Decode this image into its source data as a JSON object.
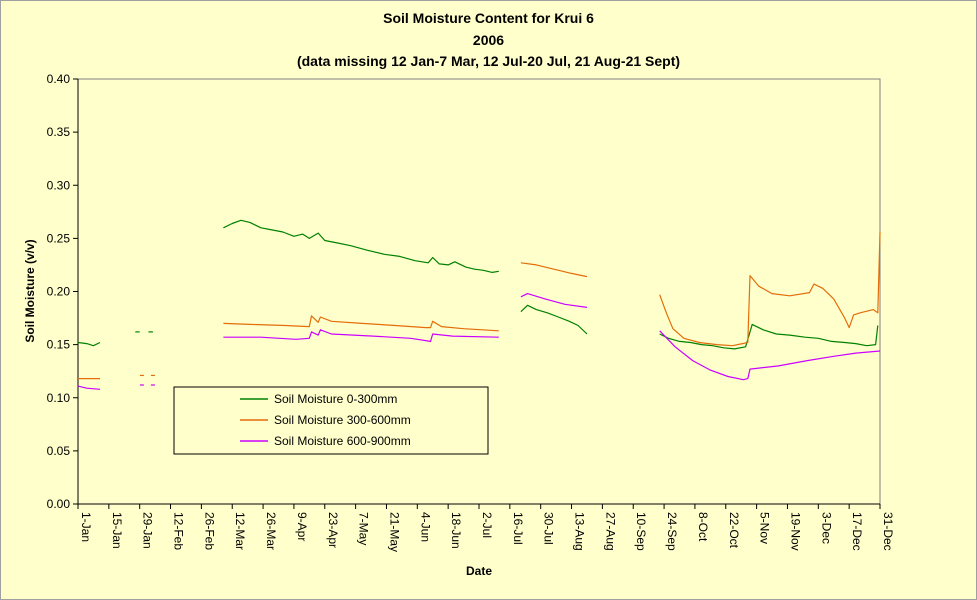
{
  "chart_data": {
    "type": "line",
    "title": "Soil Moisture Content for Krui 6",
    "subtitle": "2006",
    "note": "(data missing 12 Jan-7 Mar, 12 Jul-20 Jul, 21 Aug-21 Sept)",
    "xlabel": "Date",
    "ylabel": "Soil Moisture (v/v)",
    "ylim": [
      0,
      0.4
    ],
    "y_ticks": [
      "0.00",
      "0.05",
      "0.10",
      "0.15",
      "0.20",
      "0.25",
      "0.30",
      "0.35",
      "0.40"
    ],
    "x_ticks": [
      "1-Jan",
      "15-Jan",
      "29-Jan",
      "12-Feb",
      "26-Feb",
      "12-Mar",
      "26-Mar",
      "9-Apr",
      "23-Apr",
      "7-May",
      "21-May",
      "4-Jun",
      "18-Jun",
      "2-Jul",
      "16-Jul",
      "30-Jul",
      "13-Aug",
      "27-Aug",
      "10-Sep",
      "24-Sep",
      "8-Oct",
      "22-Oct",
      "5-Nov",
      "19-Nov",
      "3-Dec",
      "17-Dec",
      "31-Dec"
    ],
    "grid": false,
    "legend_position": "bottom-left inside",
    "series": [
      {
        "name": "Soil Moisture 0-300mm",
        "color": "#008000",
        "segments": [
          [
            [
              "2006-01-01",
              0.152
            ],
            [
              "2006-01-05",
              0.151
            ],
            [
              "2006-01-08",
              0.149
            ],
            [
              "2006-01-11",
              0.152
            ]
          ],
          [
            [
              "2006-01-27",
              0.162
            ],
            [
              "2006-01-29",
              0.162
            ]
          ],
          [
            [
              "2006-02-02",
              0.162
            ],
            [
              "2006-02-04",
              0.162
            ]
          ],
          [
            [
              "2006-03-08",
              0.26
            ],
            [
              "2006-03-12",
              0.264
            ],
            [
              "2006-03-16",
              0.267
            ],
            [
              "2006-03-20",
              0.265
            ],
            [
              "2006-03-25",
              0.26
            ],
            [
              "2006-03-30",
              0.258
            ],
            [
              "2006-04-04",
              0.256
            ],
            [
              "2006-04-09",
              0.252
            ],
            [
              "2006-04-13",
              0.254
            ],
            [
              "2006-04-16",
              0.25
            ],
            [
              "2006-04-20",
              0.255
            ],
            [
              "2006-04-23",
              0.248
            ],
            [
              "2006-04-28",
              0.246
            ],
            [
              "2006-05-05",
              0.243
            ],
            [
              "2006-05-12",
              0.239
            ],
            [
              "2006-05-20",
              0.235
            ],
            [
              "2006-05-27",
              0.233
            ],
            [
              "2006-06-03",
              0.229
            ],
            [
              "2006-06-09",
              0.227
            ],
            [
              "2006-06-11",
              0.232
            ],
            [
              "2006-06-14",
              0.226
            ],
            [
              "2006-06-18",
              0.225
            ],
            [
              "2006-06-21",
              0.228
            ],
            [
              "2006-06-26",
              0.223
            ],
            [
              "2006-06-30",
              0.221
            ],
            [
              "2006-07-04",
              0.22
            ],
            [
              "2006-07-08",
              0.218
            ],
            [
              "2006-07-11",
              0.219
            ]
          ],
          [
            [
              "2006-07-21",
              0.181
            ],
            [
              "2006-07-24",
              0.187
            ],
            [
              "2006-07-28",
              0.183
            ],
            [
              "2006-08-02",
              0.18
            ],
            [
              "2006-08-07",
              0.176
            ],
            [
              "2006-08-12",
              0.172
            ],
            [
              "2006-08-16",
              0.168
            ],
            [
              "2006-08-20",
              0.16
            ]
          ],
          [
            [
              "2006-09-22",
              0.16
            ],
            [
              "2006-09-26",
              0.156
            ],
            [
              "2006-10-01",
              0.153
            ],
            [
              "2006-10-06",
              0.152
            ],
            [
              "2006-10-11",
              0.15
            ],
            [
              "2006-10-16",
              0.149
            ],
            [
              "2006-10-21",
              0.147
            ],
            [
              "2006-10-26",
              0.146
            ],
            [
              "2006-10-31",
              0.148
            ],
            [
              "2006-11-03",
              0.169
            ],
            [
              "2006-11-08",
              0.164
            ],
            [
              "2006-11-14",
              0.16
            ],
            [
              "2006-11-20",
              0.159
            ],
            [
              "2006-11-27",
              0.157
            ],
            [
              "2006-12-03",
              0.156
            ],
            [
              "2006-12-09",
              0.153
            ],
            [
              "2006-12-15",
              0.152
            ],
            [
              "2006-12-20",
              0.151
            ],
            [
              "2006-12-25",
              0.149
            ],
            [
              "2006-12-29",
              0.15
            ],
            [
              "2006-12-30",
              0.168
            ]
          ]
        ]
      },
      {
        "name": "Soil Moisture 300-600mm",
        "color": "#e46c0a",
        "segments": [
          [
            [
              "2006-01-01",
              0.118
            ],
            [
              "2006-01-11",
              0.118
            ]
          ],
          [
            [
              "2006-01-30",
              0.121
            ]
          ],
          [
            [
              "2006-02-04",
              0.121
            ]
          ],
          [
            [
              "2006-03-08",
              0.17
            ],
            [
              "2006-03-20",
              0.169
            ],
            [
              "2006-04-05",
              0.168
            ],
            [
              "2006-04-16",
              0.167
            ],
            [
              "2006-04-17",
              0.177
            ],
            [
              "2006-04-20",
              0.171
            ],
            [
              "2006-04-21",
              0.176
            ],
            [
              "2006-04-26",
              0.172
            ],
            [
              "2006-05-10",
              0.17
            ],
            [
              "2006-05-25",
              0.168
            ],
            [
              "2006-06-08",
              0.166
            ],
            [
              "2006-06-10",
              0.166
            ],
            [
              "2006-06-11",
              0.172
            ],
            [
              "2006-06-15",
              0.167
            ],
            [
              "2006-06-25",
              0.165
            ],
            [
              "2006-07-11",
              0.163
            ]
          ],
          [
            [
              "2006-07-21",
              0.227
            ],
            [
              "2006-07-28",
              0.225
            ],
            [
              "2006-08-05",
              0.221
            ],
            [
              "2006-08-13",
              0.217
            ],
            [
              "2006-08-20",
              0.214
            ]
          ],
          [
            [
              "2006-09-22",
              0.197
            ],
            [
              "2006-09-25",
              0.18
            ],
            [
              "2006-09-28",
              0.165
            ],
            [
              "2006-10-03",
              0.156
            ],
            [
              "2006-10-10",
              0.152
            ],
            [
              "2006-10-18",
              0.15
            ],
            [
              "2006-10-25",
              0.149
            ],
            [
              "2006-11-01",
              0.152
            ],
            [
              "2006-11-02",
              0.215
            ],
            [
              "2006-11-06",
              0.205
            ],
            [
              "2006-11-12",
              0.198
            ],
            [
              "2006-11-20",
              0.196
            ],
            [
              "2006-11-29",
              0.199
            ],
            [
              "2006-12-01",
              0.207
            ],
            [
              "2006-12-05",
              0.203
            ],
            [
              "2006-12-10",
              0.193
            ],
            [
              "2006-12-15",
              0.175
            ],
            [
              "2006-12-17",
              0.166
            ],
            [
              "2006-12-19",
              0.178
            ],
            [
              "2006-12-22",
              0.18
            ],
            [
              "2006-12-28",
              0.183
            ],
            [
              "2006-12-30",
              0.18
            ],
            [
              "2006-12-31",
              0.256
            ]
          ]
        ]
      },
      {
        "name": "Soil Moisture 600-900mm",
        "color": "#cc00ff",
        "segments": [
          [
            [
              "2006-01-01",
              0.111
            ],
            [
              "2006-01-05",
              0.109
            ],
            [
              "2006-01-11",
              0.108
            ]
          ],
          [
            [
              "2006-01-30",
              0.112
            ]
          ],
          [
            [
              "2006-02-04",
              0.112
            ]
          ],
          [
            [
              "2006-03-08",
              0.157
            ],
            [
              "2006-03-25",
              0.157
            ],
            [
              "2006-04-10",
              0.155
            ],
            [
              "2006-04-16",
              0.156
            ],
            [
              "2006-04-17",
              0.162
            ],
            [
              "2006-04-20",
              0.159
            ],
            [
              "2006-04-21",
              0.164
            ],
            [
              "2006-04-26",
              0.16
            ],
            [
              "2006-05-15",
              0.158
            ],
            [
              "2006-06-01",
              0.156
            ],
            [
              "2006-06-10",
              0.153
            ],
            [
              "2006-06-11",
              0.16
            ],
            [
              "2006-06-20",
              0.158
            ],
            [
              "2006-07-11",
              0.157
            ]
          ],
          [
            [
              "2006-07-21",
              0.195
            ],
            [
              "2006-07-24",
              0.198
            ],
            [
              "2006-08-01",
              0.193
            ],
            [
              "2006-08-10",
              0.188
            ],
            [
              "2006-08-20",
              0.185
            ]
          ],
          [
            [
              "2006-09-22",
              0.163
            ],
            [
              "2006-09-29",
              0.148
            ],
            [
              "2006-10-07",
              0.135
            ],
            [
              "2006-10-15",
              0.126
            ],
            [
              "2006-10-23",
              0.12
            ],
            [
              "2006-10-30",
              0.117
            ],
            [
              "2006-11-01",
              0.118
            ],
            [
              "2006-11-02",
              0.127
            ],
            [
              "2006-11-15",
              0.13
            ],
            [
              "2006-11-28",
              0.135
            ],
            [
              "2006-12-10",
              0.139
            ],
            [
              "2006-12-20",
              0.142
            ],
            [
              "2006-12-31",
              0.144
            ]
          ]
        ]
      }
    ]
  }
}
